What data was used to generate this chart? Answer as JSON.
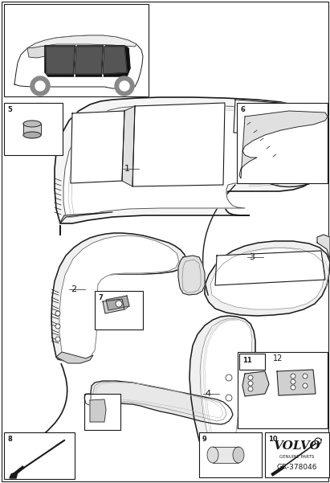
{
  "bg_color": "#ffffff",
  "line_color": "#1a1a1a",
  "volvo_logo": "VOLVO",
  "volvo_sub": "GENUINE PARTS",
  "part_number": "GR-378046",
  "fig_w": 4.11,
  "fig_h": 6.01,
  "dpi": 100
}
